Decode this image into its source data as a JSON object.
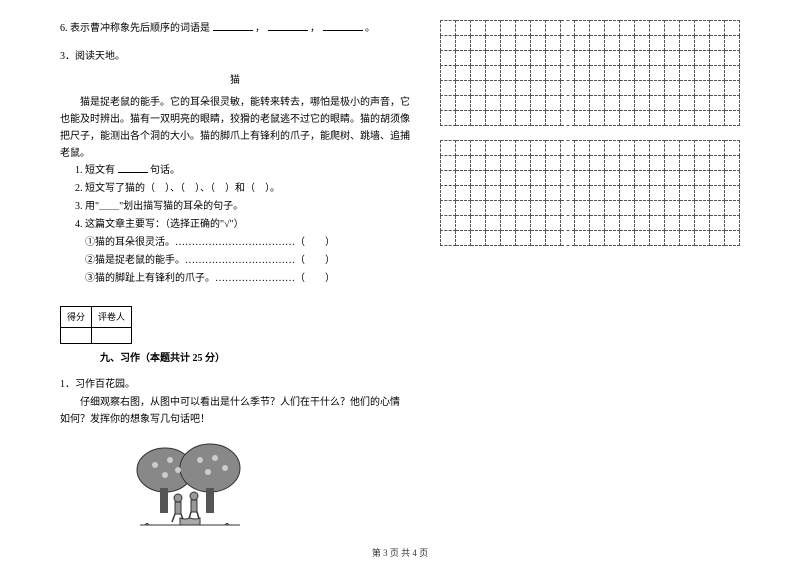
{
  "leftColumn": {
    "q6": {
      "prefix": "6. 表示曹冲称象先后顺序的词语是",
      "sep": "，",
      "end": "。"
    },
    "q3title": "3．阅读天地。",
    "catTitle": "猫",
    "passage": "猫是捉老鼠的能手。它的耳朵很灵敏，能转来转去，哪怕是极小的声音，它也能及时辨出。猫有一双明亮的眼睛，狡猾的老鼠逃不过它的眼睛。猫的胡须像把尺子，能测出各个洞的大小。猫的脚爪上有锋利的爪子，能爬树、跳墙、追捕老鼠。",
    "sub1_a": "1. 短文有",
    "sub1_b": "句话。",
    "sub2": "2. 短文写了猫的（　）、（　）、（　）和（　）。",
    "sub3": "3. 用\"＿＿\"划出描写猫的耳朵的句子。",
    "sub4": "4. 这篇文章主要写：（选择正确的\"√\"）",
    "choice1": "①猫的耳朵很灵活。………………………………（　　）",
    "choice2": "②猫是捉老鼠的能手。……………………………（　　）",
    "choice3": "③猫的脚趾上有锋利的爪子。……………………（　　）",
    "scoreHeaders": [
      "得分",
      "评卷人"
    ],
    "sectionTitle": "九、习作（本题共计 25 分）",
    "essay1": "1．习作百花园。",
    "essayBody": "仔细观察右图，从图中可以看出是什么季节？人们在干什么？他们的心情　如何？发挥你的想象写几句话吧！"
  },
  "gridConfig": {
    "block1": {
      "rows": 7,
      "cols": 20
    },
    "block2": {
      "rows": 7,
      "cols": 20
    }
  },
  "footer": "第 3 页 共 4 页",
  "colors": {
    "text": "#000000",
    "bg": "#ffffff",
    "gridBorder": "#555555"
  }
}
